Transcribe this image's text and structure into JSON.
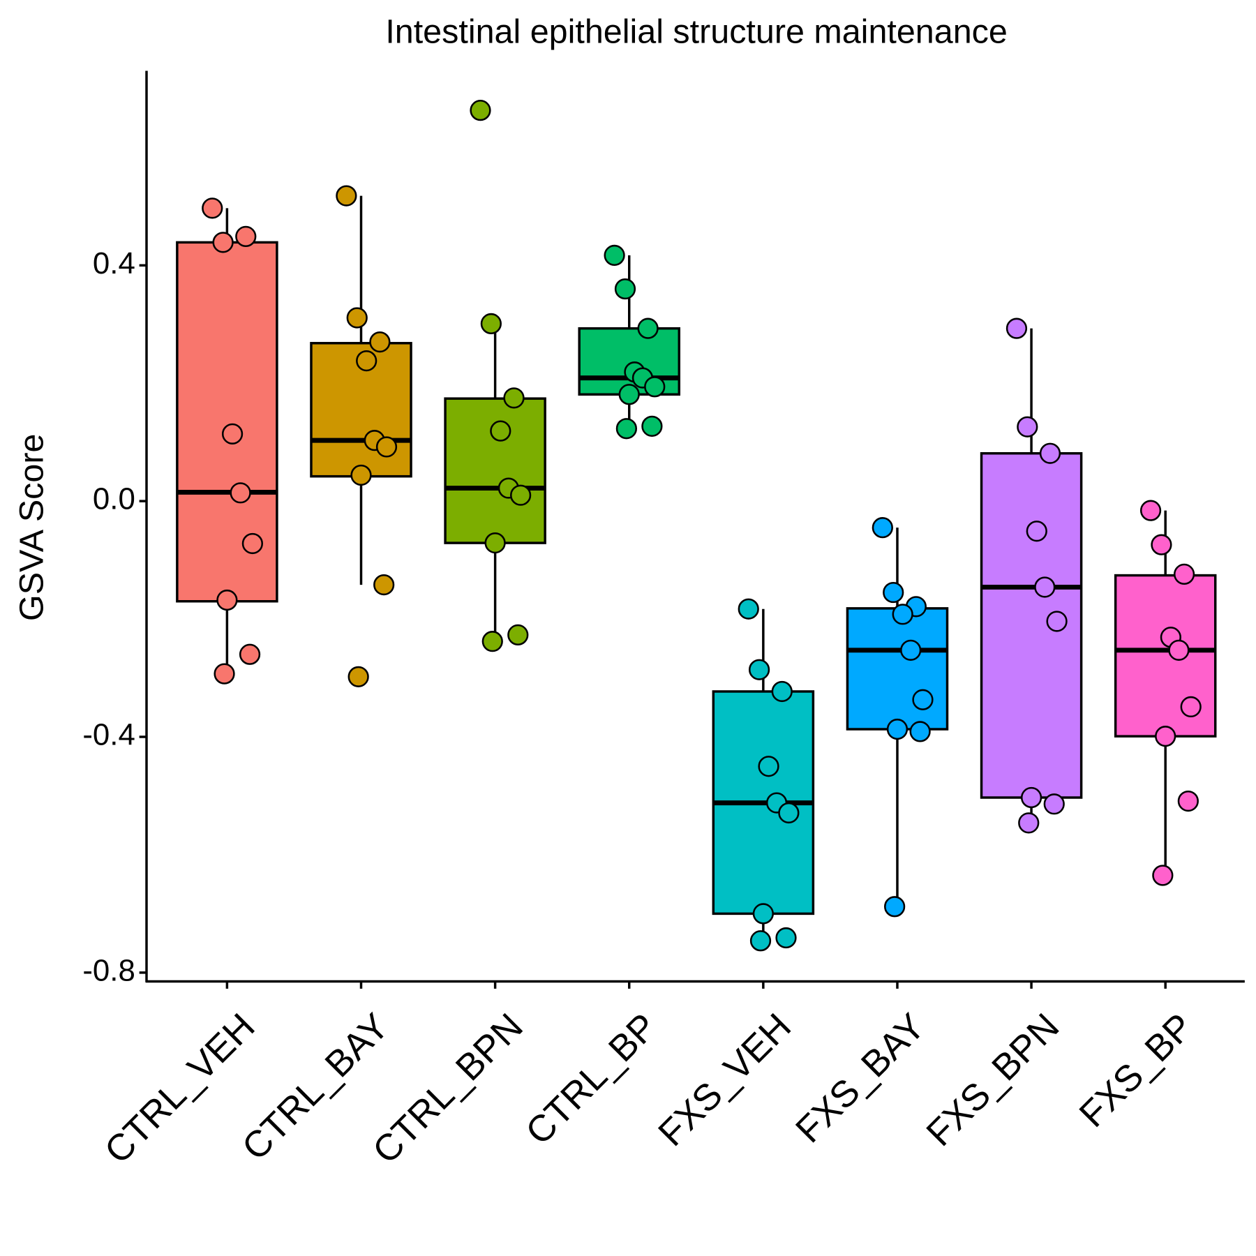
{
  "chart_data": {
    "type": "box",
    "title": "Intestinal epithelial structure maintenance",
    "y_label": "GSVA Score",
    "categories": [
      "CTRL_VEH",
      "CTRL_BAY",
      "CTRL_BPN",
      "CTRL_BP",
      "FXS_VEH",
      "FXS_BAY",
      "FXS_BPN",
      "FXS_BP"
    ],
    "colors": [
      "#F8766D",
      "#CD9600",
      "#7CAE00",
      "#00BE67",
      "#00BFC4",
      "#00A9FF",
      "#C77CFF",
      "#FF61CC"
    ],
    "ylim": [
      -0.815,
      0.73
    ],
    "yticks": [
      -0.8,
      -0.4,
      {
        "value": 0,
        "label": "0.0"
      },
      0.4
    ],
    "boxes": [
      {
        "whisker_low": -0.291,
        "q1": -0.17,
        "median": 0.015,
        "q3": 0.439,
        "whisker_high": 0.497,
        "points": [
          0.497,
          0.439,
          0.449,
          0.114,
          0.014,
          -0.072,
          -0.168,
          -0.26,
          -0.293
        ]
      },
      {
        "whisker_low": -0.142,
        "q1": 0.042,
        "median": 0.103,
        "q3": 0.268,
        "whisker_high": 0.518,
        "points": [
          0.518,
          0.311,
          0.27,
          0.238,
          0.103,
          0.092,
          0.044,
          -0.142,
          -0.298
        ]
      },
      {
        "whisker_low": -0.238,
        "q1": -0.071,
        "median": 0.022,
        "q3": 0.174,
        "whisker_high": 0.301,
        "points": [
          0.663,
          0.301,
          0.175,
          0.119,
          0.022,
          0.01,
          -0.071,
          -0.227,
          -0.238
        ]
      },
      {
        "whisker_low": 0.124,
        "q1": 0.181,
        "median": 0.209,
        "q3": 0.293,
        "whisker_high": 0.417,
        "points": [
          0.417,
          0.36,
          0.293,
          0.219,
          0.209,
          0.194,
          0.181,
          0.127,
          0.123
        ]
      },
      {
        "whisker_low": -0.744,
        "q1": -0.7,
        "median": -0.512,
        "q3": -0.323,
        "whisker_high": -0.183,
        "points": [
          -0.183,
          -0.286,
          -0.323,
          -0.45,
          -0.512,
          -0.529,
          -0.7,
          -0.741,
          -0.746
        ]
      },
      {
        "whisker_low": -0.688,
        "q1": -0.387,
        "median": -0.253,
        "q3": -0.182,
        "whisker_high": -0.045,
        "points": [
          -0.045,
          -0.155,
          -0.179,
          -0.192,
          -0.253,
          -0.337,
          -0.387,
          -0.391,
          -0.688
        ]
      },
      {
        "whisker_low": -0.544,
        "q1": -0.503,
        "median": -0.146,
        "q3": 0.081,
        "whisker_high": 0.293,
        "points": [
          0.293,
          0.126,
          0.081,
          -0.051,
          -0.146,
          -0.204,
          -0.503,
          -0.514,
          -0.546
        ]
      },
      {
        "whisker_low": -0.633,
        "q1": -0.399,
        "median": -0.253,
        "q3": -0.126,
        "whisker_high": -0.016,
        "points": [
          -0.016,
          -0.074,
          -0.124,
          -0.231,
          -0.253,
          -0.349,
          -0.399,
          -0.509,
          -0.635
        ]
      }
    ]
  }
}
